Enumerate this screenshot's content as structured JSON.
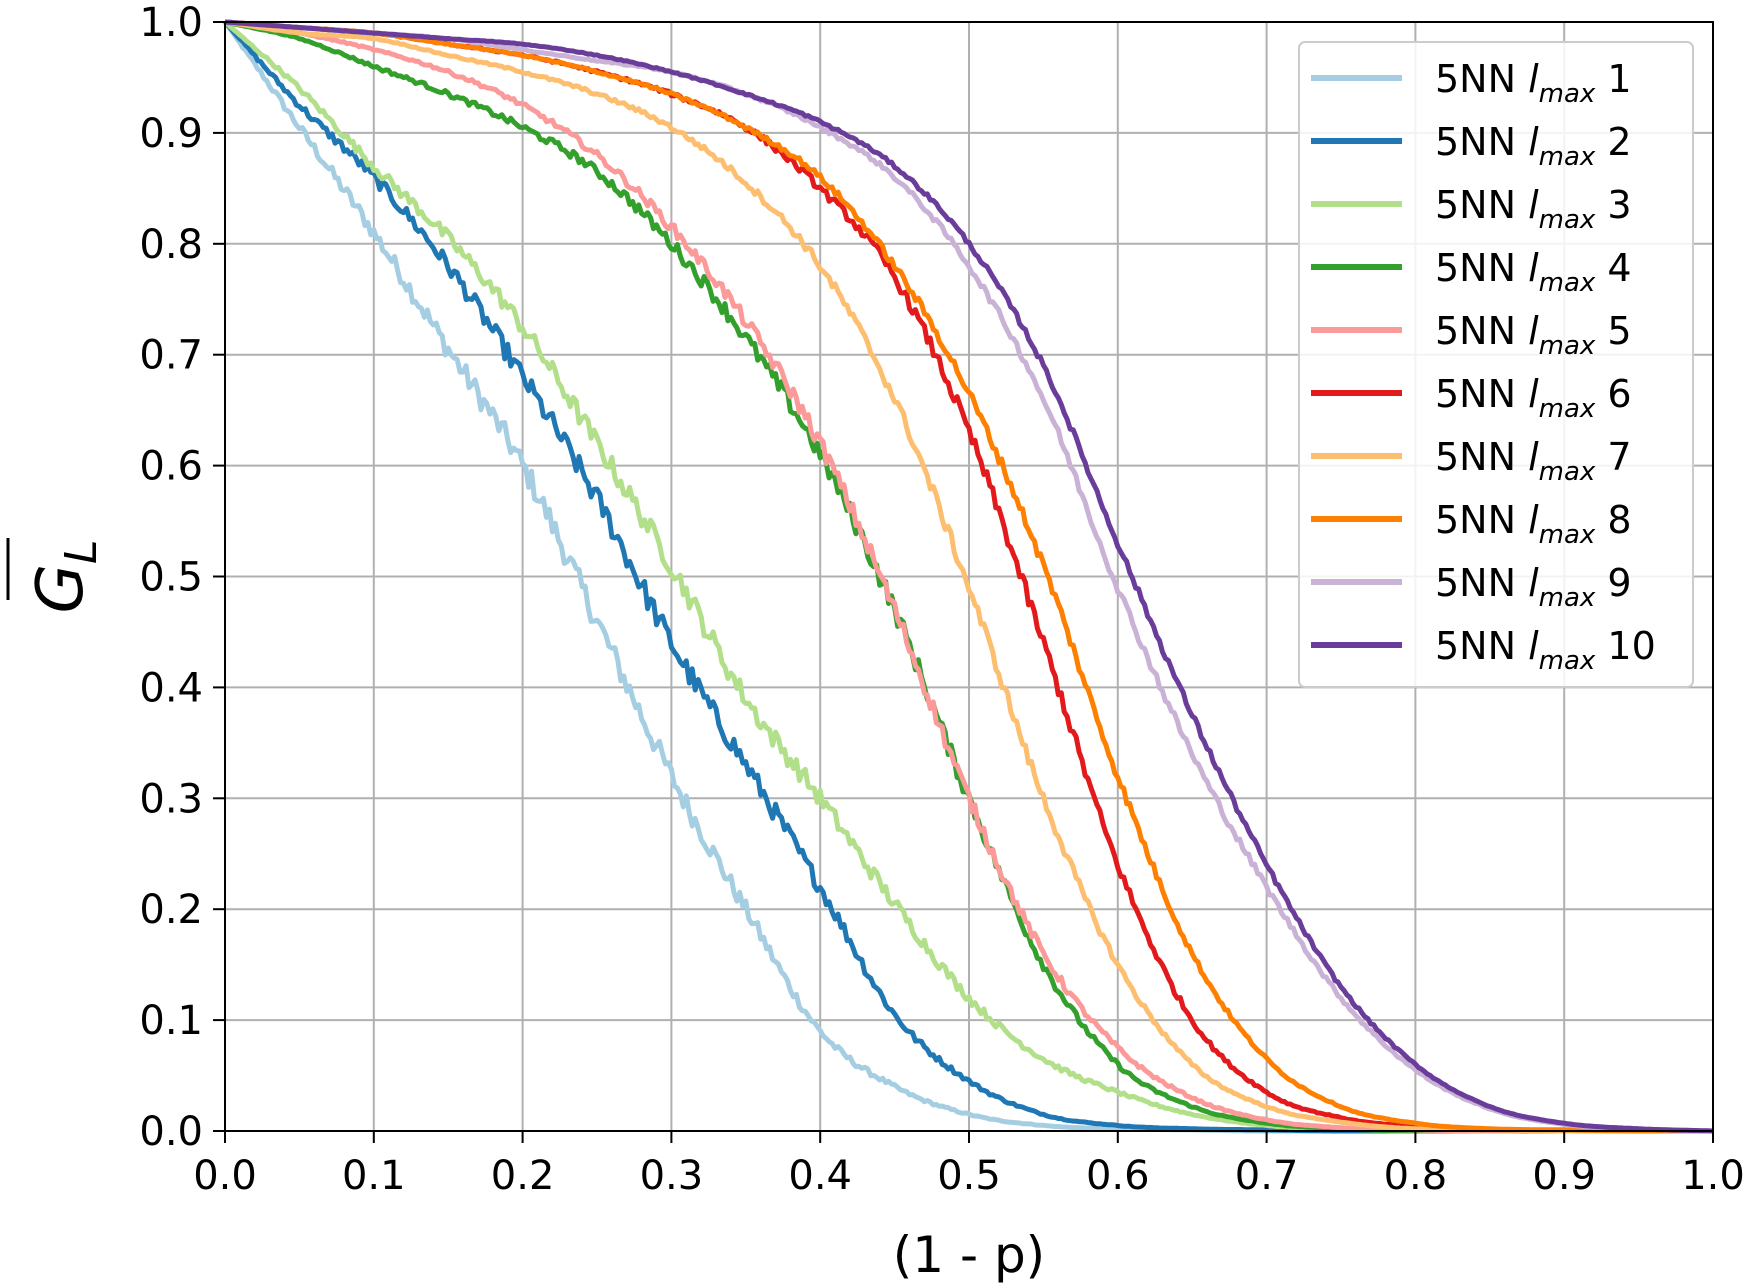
{
  "chart_data": {
    "type": "line",
    "xlabel": "(1 - p)",
    "ylabel": {
      "symbol": "G",
      "subscript": "L"
    },
    "xlim": [
      0.0,
      1.0
    ],
    "ylim": [
      0.0,
      1.0
    ],
    "xticks": [
      "0.0",
      "0.1",
      "0.2",
      "0.3",
      "0.4",
      "0.5",
      "0.6",
      "0.7",
      "0.8",
      "0.9",
      "1.0"
    ],
    "yticks": [
      "0.0",
      "0.1",
      "0.2",
      "0.3",
      "0.4",
      "0.5",
      "0.6",
      "0.7",
      "0.8",
      "0.9",
      "1.0"
    ],
    "grid": true,
    "legend_position": "top-right",
    "legend_prefix": "5NN",
    "legend_symbol": "l",
    "legend_subscript": "max",
    "x": [
      0.0,
      0.05,
      0.1,
      0.15,
      0.2,
      0.25,
      0.3,
      0.35,
      0.4,
      0.45,
      0.5,
      0.55,
      0.6,
      0.65,
      0.7,
      0.75,
      0.8,
      0.85,
      0.9,
      0.95,
      1.0
    ],
    "series": [
      {
        "name": "1",
        "color": "#a6cee3",
        "values": [
          1.0,
          0.905,
          0.81,
          0.705,
          0.6,
          0.46,
          0.32,
          0.2,
          0.09,
          0.04,
          0.015,
          0.005,
          0.002,
          0.001,
          0.0,
          0.0,
          0.0,
          0.0,
          0.0,
          0.0,
          0.0
        ]
      },
      {
        "name": "2",
        "color": "#1f78b4",
        "values": [
          1.0,
          0.925,
          0.86,
          0.78,
          0.68,
          0.57,
          0.44,
          0.33,
          0.22,
          0.105,
          0.045,
          0.015,
          0.005,
          0.002,
          0.001,
          0.0,
          0.0,
          0.0,
          0.0,
          0.0,
          0.0
        ]
      },
      {
        "name": "3",
        "color": "#b2df8a",
        "values": [
          1.0,
          0.94,
          0.87,
          0.805,
          0.725,
          0.62,
          0.51,
          0.39,
          0.3,
          0.205,
          0.12,
          0.065,
          0.035,
          0.015,
          0.005,
          0.002,
          0.0,
          0.0,
          0.0,
          0.0,
          0.0
        ]
      },
      {
        "name": "4",
        "color": "#33a02c",
        "values": [
          1.0,
          0.985,
          0.96,
          0.935,
          0.905,
          0.865,
          0.8,
          0.715,
          0.61,
          0.47,
          0.3,
          0.15,
          0.06,
          0.022,
          0.007,
          0.002,
          0.0,
          0.0,
          0.0,
          0.0,
          0.0
        ]
      },
      {
        "name": "5",
        "color": "#fb9a99",
        "values": [
          1.0,
          0.99,
          0.975,
          0.955,
          0.925,
          0.88,
          0.815,
          0.73,
          0.62,
          0.47,
          0.3,
          0.16,
          0.075,
          0.03,
          0.01,
          0.003,
          0.001,
          0.0,
          0.0,
          0.0,
          0.0
        ]
      },
      {
        "name": "6",
        "color": "#e31a1c",
        "values": [
          1.0,
          0.995,
          0.99,
          0.98,
          0.97,
          0.955,
          0.935,
          0.905,
          0.85,
          0.77,
          0.63,
          0.44,
          0.24,
          0.1,
          0.035,
          0.012,
          0.004,
          0.001,
          0.0,
          0.0,
          0.0
        ]
      },
      {
        "name": "7",
        "color": "#fdbf6f",
        "values": [
          1.0,
          0.99,
          0.985,
          0.97,
          0.955,
          0.935,
          0.905,
          0.855,
          0.78,
          0.66,
          0.49,
          0.3,
          0.15,
          0.06,
          0.022,
          0.008,
          0.002,
          0.001,
          0.0,
          0.0,
          0.0
        ]
      },
      {
        "name": "8",
        "color": "#ff7f00",
        "values": [
          1.0,
          0.995,
          0.99,
          0.98,
          0.97,
          0.955,
          0.935,
          0.905,
          0.86,
          0.78,
          0.665,
          0.51,
          0.32,
          0.16,
          0.065,
          0.022,
          0.007,
          0.002,
          0.001,
          0.0,
          0.0
        ]
      },
      {
        "name": "9",
        "color": "#cab2d6",
        "values": [
          1.0,
          0.995,
          0.99,
          0.985,
          0.975,
          0.965,
          0.955,
          0.935,
          0.905,
          0.86,
          0.78,
          0.66,
          0.49,
          0.34,
          0.22,
          0.12,
          0.055,
          0.02,
          0.006,
          0.002,
          0.0
        ]
      },
      {
        "name": "10",
        "color": "#6a3d9a",
        "values": [
          1.0,
          0.995,
          0.99,
          0.985,
          0.98,
          0.97,
          0.955,
          0.935,
          0.91,
          0.87,
          0.8,
          0.69,
          0.53,
          0.375,
          0.24,
          0.13,
          0.06,
          0.022,
          0.007,
          0.002,
          0.0
        ]
      }
    ]
  }
}
